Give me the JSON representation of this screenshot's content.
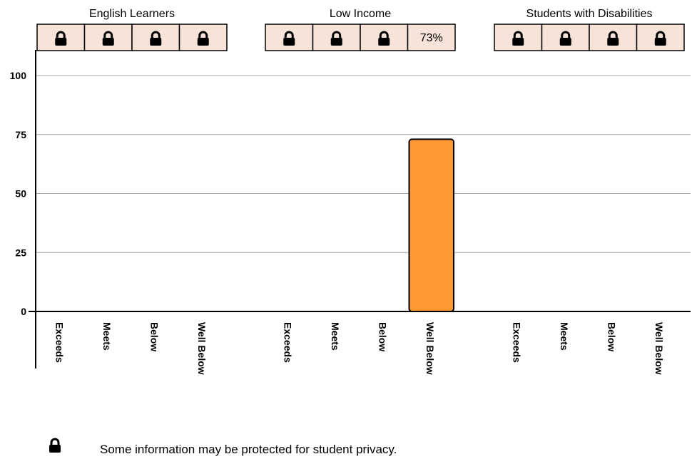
{
  "chart_data": {
    "type": "bar",
    "ylim": [
      0,
      100
    ],
    "yticks": [
      0,
      25,
      50,
      75,
      100
    ],
    "grid": true,
    "bar_color": "#ff9933",
    "cell_color": "#f7e3d8",
    "groups": [
      {
        "name": "English Learners",
        "categories": [
          "Exceeds",
          "Meets",
          "Below",
          "Well Below"
        ],
        "values": [
          null,
          null,
          null,
          null
        ],
        "cells": [
          "lock",
          "lock",
          "lock",
          "lock"
        ]
      },
      {
        "name": "Low Income",
        "categories": [
          "Exceeds",
          "Meets",
          "Below",
          "Well Below"
        ],
        "values": [
          null,
          null,
          null,
          73
        ],
        "cells": [
          "lock",
          "lock",
          "lock",
          "73%"
        ]
      },
      {
        "name": "Students with Disabilities",
        "categories": [
          "Exceeds",
          "Meets",
          "Below",
          "Well Below"
        ],
        "values": [
          null,
          null,
          null,
          null
        ],
        "cells": [
          "lock",
          "lock",
          "lock",
          "lock"
        ]
      }
    ]
  },
  "footnote": {
    "icon": "lock-icon",
    "text": "Some information may be protected for student privacy."
  }
}
